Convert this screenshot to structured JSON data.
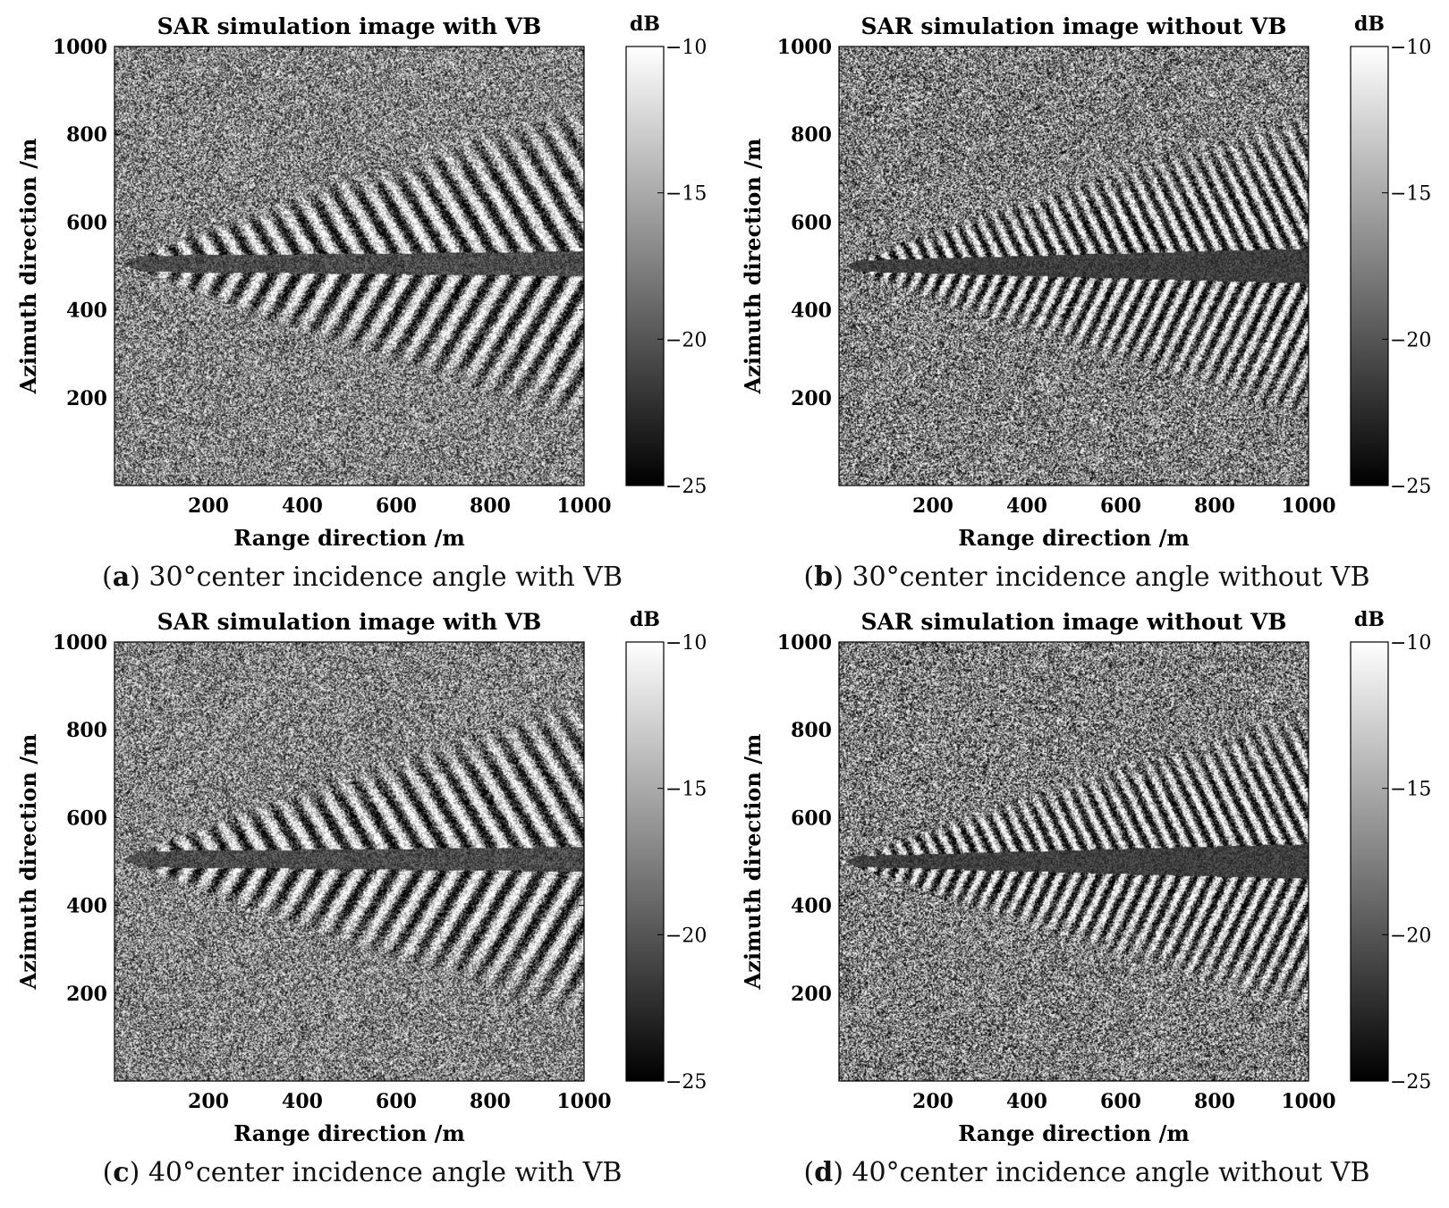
{
  "chart_data": [
    {
      "type": "heatmap",
      "panel_label": "a",
      "caption": "30°center incidence angle with VB",
      "title": "SAR simulation image with VB",
      "xlabel": "Range direction /m",
      "ylabel": "Azimuth direction /m",
      "xlim": [
        0,
        1000
      ],
      "ylim": [
        0,
        1000
      ],
      "x_ticks": [
        200,
        400,
        600,
        800,
        1000
      ],
      "y_ticks": [
        200,
        400,
        600,
        800,
        1000
      ],
      "colorbar": {
        "unit": "dB",
        "range": [
          -25,
          -10
        ],
        "ticks": [
          -10,
          -15,
          -20,
          -25
        ],
        "colormap": "gray"
      },
      "wake_pattern": {
        "style": "broad",
        "apex_x": 20,
        "center_y": 505,
        "upper_end_y": 880,
        "lower_end_y": 140
      }
    },
    {
      "type": "heatmap",
      "panel_label": "b",
      "caption": "30°center incidence angle without VB",
      "title": "SAR simulation image without VB",
      "xlabel": "Range direction /m",
      "ylabel": "Azimuth direction /m",
      "xlim": [
        0,
        1000
      ],
      "ylim": [
        0,
        1000
      ],
      "x_ticks": [
        200,
        400,
        600,
        800,
        1000
      ],
      "y_ticks": [
        200,
        400,
        600,
        800,
        1000
      ],
      "colorbar": {
        "unit": "dB",
        "range": [
          -25,
          -10
        ],
        "ticks": [
          -10,
          -15,
          -20,
          -25
        ],
        "colormap": "gray"
      },
      "wake_pattern": {
        "style": "narrow",
        "apex_x": 15,
        "center_y": 500,
        "upper_end_y": 860,
        "lower_end_y": 140
      }
    },
    {
      "type": "heatmap",
      "panel_label": "c",
      "caption": "40°center incidence angle with VB",
      "title": "SAR simulation image with VB",
      "xlabel": "Range direction /m",
      "ylabel": "Azimuth direction /m",
      "xlim": [
        0,
        1000
      ],
      "ylim": [
        0,
        1000
      ],
      "x_ticks": [
        200,
        400,
        600,
        800,
        1000
      ],
      "y_ticks": [
        200,
        400,
        600,
        800,
        1000
      ],
      "colorbar": {
        "unit": "dB",
        "range": [
          -25,
          -10
        ],
        "ticks": [
          -10,
          -15,
          -20,
          -25
        ],
        "colormap": "gray"
      },
      "wake_pattern": {
        "style": "broad",
        "apex_x": 20,
        "center_y": 505,
        "upper_end_y": 880,
        "lower_end_y": 140
      }
    },
    {
      "type": "heatmap",
      "panel_label": "d",
      "caption": "40°center incidence angle without VB",
      "title": "SAR simulation image without VB",
      "xlabel": "Range direction /m",
      "ylabel": "Azimuth direction /m",
      "xlim": [
        0,
        1000
      ],
      "ylim": [
        0,
        1000
      ],
      "x_ticks": [
        200,
        400,
        600,
        800,
        1000
      ],
      "y_ticks": [
        200,
        400,
        600,
        800,
        1000
      ],
      "colorbar": {
        "unit": "dB",
        "range": [
          -25,
          -10
        ],
        "ticks": [
          -10,
          -15,
          -20,
          -25
        ],
        "colormap": "gray"
      },
      "wake_pattern": {
        "style": "narrow",
        "apex_x": 15,
        "center_y": 500,
        "upper_end_y": 860,
        "lower_end_y": 140
      }
    }
  ]
}
